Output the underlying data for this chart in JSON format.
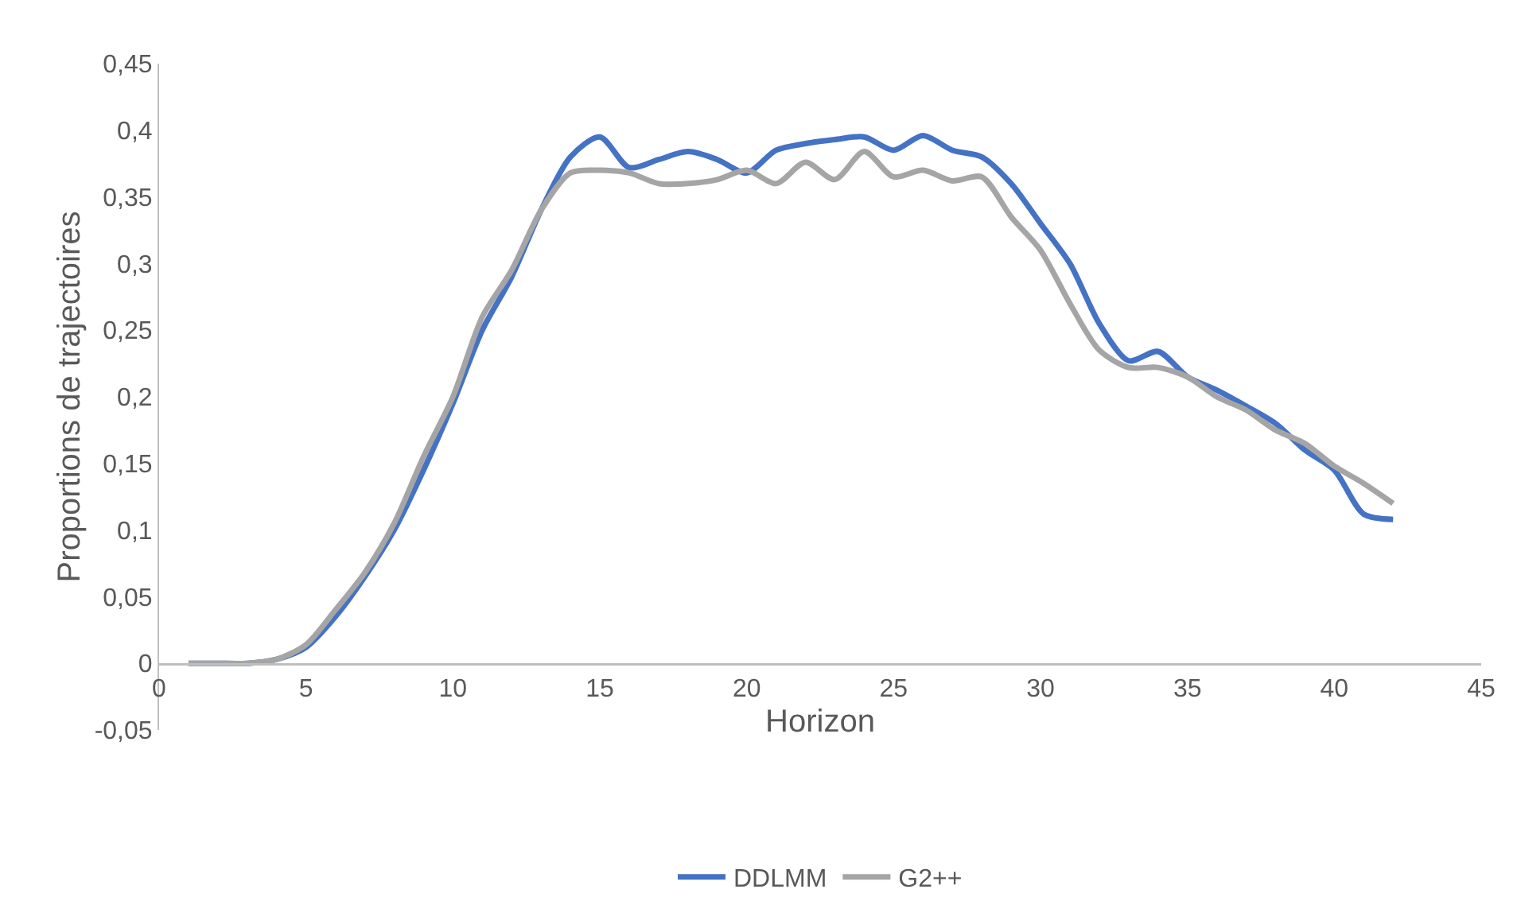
{
  "chart_data": {
    "type": "line",
    "xlabel": "Horizon",
    "ylabel": "Proportions de trajectoires",
    "x": [
      1,
      2,
      3,
      4,
      5,
      6,
      7,
      8,
      9,
      10,
      11,
      12,
      13,
      14,
      15,
      16,
      17,
      18,
      19,
      20,
      21,
      22,
      23,
      24,
      25,
      26,
      27,
      28,
      29,
      30,
      31,
      32,
      33,
      34,
      35,
      36,
      37,
      38,
      39,
      40,
      41,
      42
    ],
    "series": [
      {
        "name": "DDLMM",
        "color": "#4472c4",
        "values": [
          0,
          0,
          0,
          0.003,
          0.012,
          0.035,
          0.065,
          0.1,
          0.145,
          0.195,
          0.25,
          0.29,
          0.34,
          0.38,
          0.395,
          0.372,
          0.378,
          0.384,
          0.378,
          0.368,
          0.385,
          0.39,
          0.393,
          0.395,
          0.385,
          0.396,
          0.385,
          0.38,
          0.36,
          0.33,
          0.3,
          0.255,
          0.227,
          0.234,
          0.215,
          0.205,
          0.193,
          0.18,
          0.16,
          0.145,
          0.112,
          0.108
        ]
      },
      {
        "name": "G2++",
        "color": "#a5a5a5",
        "values": [
          0,
          0,
          0,
          0.003,
          0.014,
          0.04,
          0.068,
          0.105,
          0.155,
          0.2,
          0.26,
          0.295,
          0.34,
          0.368,
          0.37,
          0.368,
          0.36,
          0.36,
          0.363,
          0.37,
          0.36,
          0.376,
          0.363,
          0.384,
          0.365,
          0.37,
          0.362,
          0.365,
          0.335,
          0.31,
          0.27,
          0.235,
          0.222,
          0.222,
          0.215,
          0.2,
          0.19,
          0.175,
          0.165,
          0.148,
          0.135,
          0.12
        ]
      }
    ],
    "xlim": [
      0,
      45
    ],
    "xticks": [
      0,
      5,
      10,
      15,
      20,
      25,
      30,
      35,
      40,
      45
    ],
    "ylim": [
      -0.05,
      0.45
    ],
    "yticks": [
      {
        "value": -0.05,
        "label": "-0,05"
      },
      0,
      {
        "value": 0.05,
        "label": "0,05"
      },
      {
        "value": 0.1,
        "label": "0,1"
      },
      {
        "value": 0.15,
        "label": "0,15"
      },
      {
        "value": 0.2,
        "label": "0,2"
      },
      {
        "value": 0.25,
        "label": "0,25"
      },
      {
        "value": 0.3,
        "label": "0,3"
      },
      {
        "value": 0.35,
        "label": "0,35"
      },
      {
        "value": 0.4,
        "label": "0,4"
      },
      {
        "value": 0.45,
        "label": "0,45"
      }
    ],
    "grid": false,
    "legend": "bottom",
    "marker": "none",
    "line_style": "solid"
  }
}
